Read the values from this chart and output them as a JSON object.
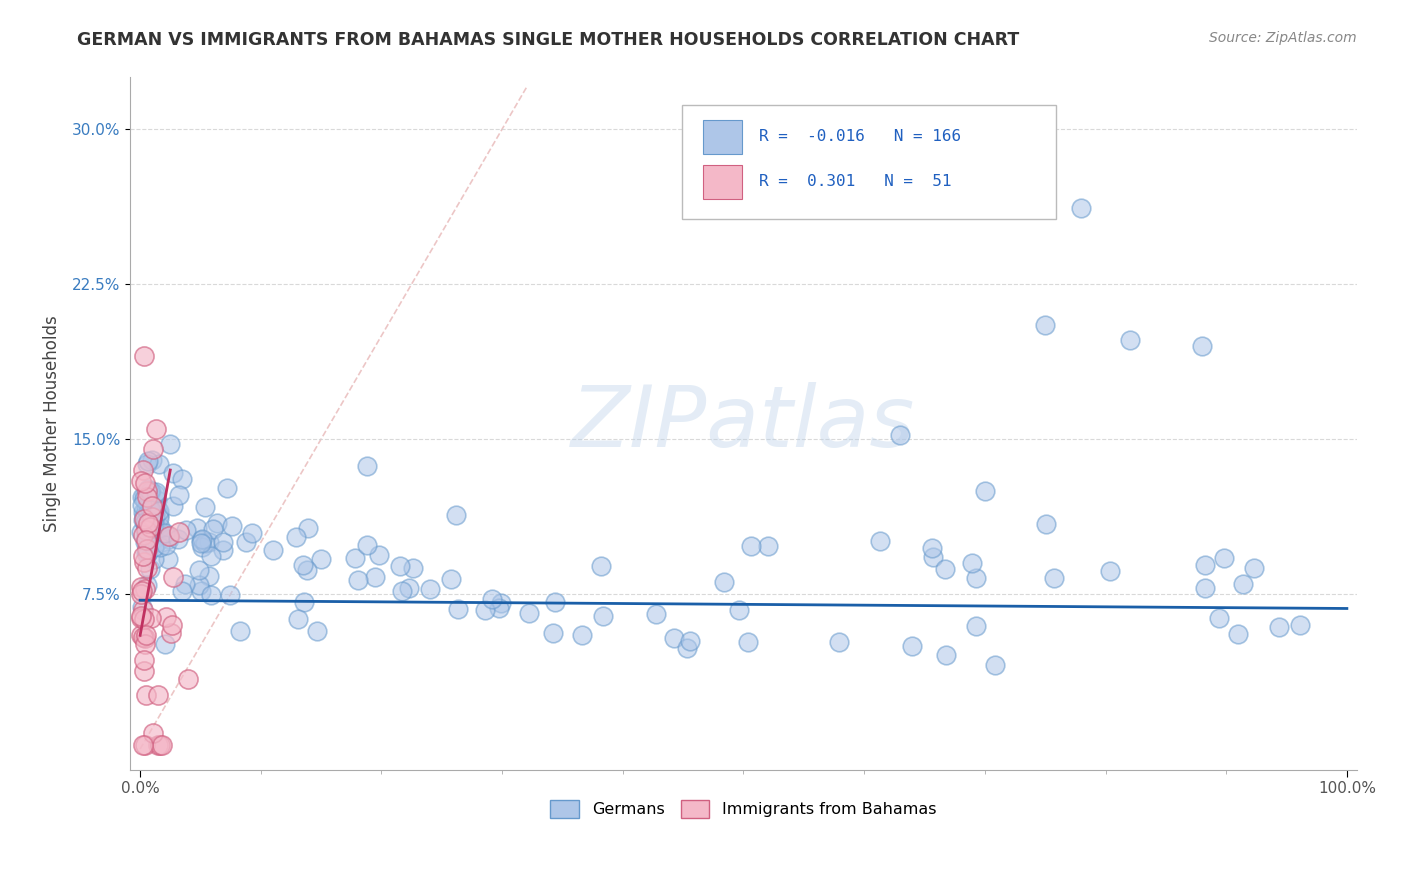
{
  "title": "GERMAN VS IMMIGRANTS FROM BAHAMAS SINGLE MOTHER HOUSEHOLDS CORRELATION CHART",
  "source": "Source: ZipAtlas.com",
  "ylabel": "Single Mother Households",
  "watermark": "ZIPatlas",
  "xlim": [
    0.0,
    1.0
  ],
  "ylim": [
    0.0,
    0.32
  ],
  "yticks": [
    0.075,
    0.15,
    0.225,
    0.3
  ],
  "ytick_labels": [
    "7.5%",
    "15.0%",
    "22.5%",
    "30.0%"
  ],
  "xticks": [
    0.0,
    1.0
  ],
  "xtick_labels": [
    "0.0%",
    "100.0%"
  ],
  "blue_R": -0.016,
  "blue_N": 166,
  "pink_R": 0.301,
  "pink_N": 51,
  "blue_color": "#aec6e8",
  "blue_edge_color": "#6699cc",
  "pink_color": "#f4b8c8",
  "pink_edge_color": "#d06080",
  "blue_line_color": "#1a5fa8",
  "pink_line_color": "#c03060",
  "diag_color": "#e0a0a0",
  "grid_color": "#d0d0d0",
  "legend_blue_label": "Germans",
  "legend_pink_label": "Immigrants from Bahamas",
  "background_color": "#ffffff",
  "title_color": "#333333",
  "source_color": "#888888",
  "blue_line_y0": 0.072,
  "blue_line_y1": 0.068,
  "pink_line_x0": 0.0,
  "pink_line_x1": 0.025,
  "pink_line_y0": 0.055,
  "pink_line_y1": 0.135
}
